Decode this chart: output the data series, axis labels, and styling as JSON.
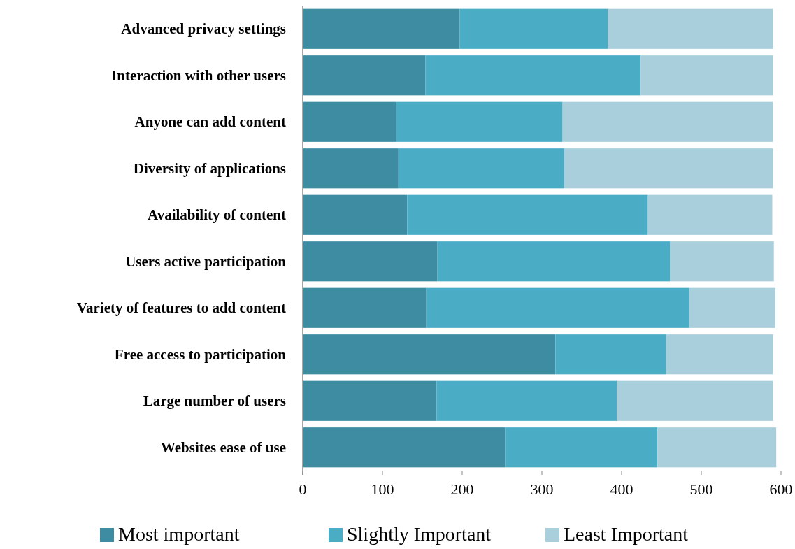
{
  "chart_data": {
    "type": "bar",
    "orientation": "horizontal",
    "stacked": true,
    "categories": [
      "Advanced privacy settings",
      "Interaction with other users",
      "Anyone can add content",
      "Diversity of applications ",
      "Availability of content ",
      "Users active participation",
      "Variety of features to add content",
      "Free access to participation",
      "Large number of users",
      "Websites ease of use"
    ],
    "series": [
      {
        "name": "Most important",
        "color": "#3d8ca2",
        "values": [
          197,
          154,
          117,
          120,
          131,
          169,
          155,
          317,
          168,
          254
        ]
      },
      {
        "name": "Slightly Important",
        "color": "#4bacc6",
        "values": [
          186,
          270,
          209,
          208,
          302,
          292,
          330,
          139,
          226,
          191
        ]
      },
      {
        "name": "Least Important",
        "color": "#a9cfdc",
        "values": [
          207,
          166,
          264,
          262,
          156,
          130,
          108,
          134,
          196,
          149
        ]
      }
    ],
    "xlim": [
      0,
      600
    ],
    "xticks": [
      0,
      100,
      200,
      300,
      400,
      500,
      600
    ],
    "grid": false,
    "legend": "bottom"
  }
}
